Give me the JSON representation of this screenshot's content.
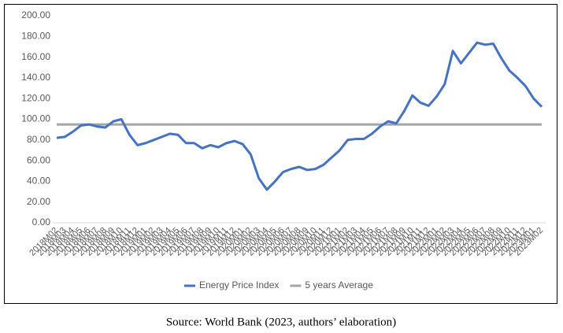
{
  "chart_data": {
    "type": "line",
    "categories": [
      "2018M02",
      "2018M03",
      "2018M04",
      "2018M05",
      "2018M06",
      "2018M07",
      "2018M08",
      "2018M09",
      "2018M10",
      "2018M11",
      "2018M12",
      "2019M01",
      "2019M02",
      "2019M03",
      "2019M04",
      "2019M05",
      "2019M06",
      "2019M07",
      "2019M08",
      "2019M09",
      "2019M10",
      "2019M11",
      "2019M12",
      "2020M01",
      "2020M02",
      "2020M03",
      "2020M04",
      "2020M05",
      "2020M06",
      "2020M07",
      "2020M08",
      "2020M09",
      "2020M10",
      "2020M11",
      "2020M12",
      "2021M01",
      "2021M02",
      "2021M03",
      "2021M04",
      "2021M05",
      "2021M06",
      "2021M07",
      "2021M08",
      "2021M09",
      "2021M10",
      "2021M11",
      "2021M12",
      "2022M01",
      "2022M02",
      "2022M03",
      "2022M04",
      "2022M05",
      "2022M06",
      "2022M07",
      "2022M08",
      "2022M09",
      "2022M10",
      "2022M11",
      "2022M12",
      "2023M01",
      "2023M02"
    ],
    "series": [
      {
        "name": "Energy Price Index",
        "color": "#4472c4",
        "values": [
          82,
          83,
          88,
          94,
          95,
          93,
          92,
          98,
          100,
          85,
          75,
          77,
          80,
          83,
          86,
          85,
          77,
          77,
          72,
          75,
          73,
          77,
          79,
          76,
          66,
          43,
          32,
          40,
          49,
          52,
          54,
          51,
          52,
          56,
          63,
          70,
          80,
          81,
          81,
          86,
          93,
          98,
          96,
          108,
          123,
          116,
          113,
          122,
          134,
          166,
          154,
          164,
          174,
          172,
          173,
          159,
          147,
          140,
          132,
          120,
          112
        ]
      },
      {
        "name": "5 years Average",
        "color": "#a5a5a5",
        "values": [
          95,
          95,
          95,
          95,
          95,
          95,
          95,
          95,
          95,
          95,
          95,
          95,
          95,
          95,
          95,
          95,
          95,
          95,
          95,
          95,
          95,
          95,
          95,
          95,
          95,
          95,
          95,
          95,
          95,
          95,
          95,
          95,
          95,
          95,
          95,
          95,
          95,
          95,
          95,
          95,
          95,
          95,
          95,
          95,
          95,
          95,
          95,
          95,
          95,
          95,
          95,
          95,
          95,
          95,
          95,
          95,
          95,
          95,
          95,
          95,
          95
        ]
      }
    ],
    "ylim": [
      0,
      200
    ],
    "yticks": [
      {
        "value": 0,
        "label": "0.00"
      },
      {
        "value": 20,
        "label": "20.00"
      },
      {
        "value": 40,
        "label": "40.00"
      },
      {
        "value": 60,
        "label": "60.00"
      },
      {
        "value": 80,
        "label": "80.00"
      },
      {
        "value": 100,
        "label": "100.00"
      },
      {
        "value": 120,
        "label": "120.00"
      },
      {
        "value": 140,
        "label": "140.00"
      },
      {
        "value": 160,
        "label": "160.00"
      },
      {
        "value": 180,
        "label": "180.00"
      },
      {
        "value": 200,
        "label": "200.00"
      }
    ],
    "grid": false,
    "caption": "Source: World Bank (2023, authors’ elaboration)"
  }
}
